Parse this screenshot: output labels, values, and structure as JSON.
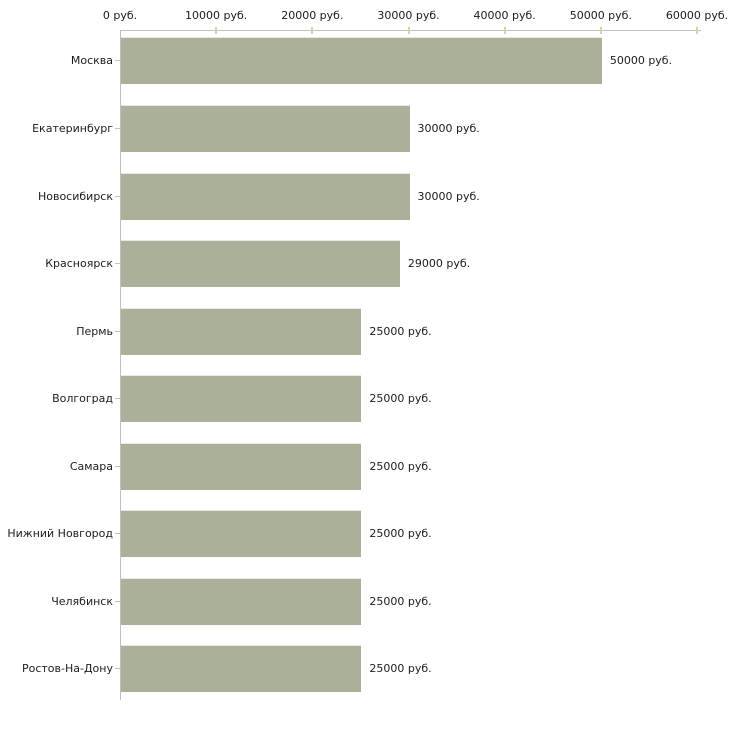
{
  "chart_data": {
    "type": "bar",
    "orientation": "horizontal",
    "categories": [
      "Москва",
      "Екатеринбург",
      "Новосибирск",
      "Красноярск",
      "Пермь",
      "Волгоград",
      "Самара",
      "Нижний Новгород",
      "Челябинск",
      "Ростов-На-Дону"
    ],
    "values": [
      50000,
      30000,
      30000,
      29000,
      25000,
      25000,
      25000,
      25000,
      25000,
      25000
    ],
    "value_labels": [
      "50000 руб.",
      "30000 руб.",
      "30000 руб.",
      "29000 руб.",
      "25000 руб.",
      "25000 руб.",
      "25000 руб.",
      "25000 руб.",
      "25000 руб.",
      "25000 руб."
    ],
    "x_axis": {
      "min": 0,
      "max": 60000,
      "tick_values": [
        0,
        10000,
        20000,
        30000,
        40000,
        50000,
        60000
      ],
      "tick_labels": [
        "0 руб.",
        "10000 руб.",
        "20000 руб.",
        "30000 руб.",
        "40000 руб.",
        "50000 руб.",
        "60000 руб."
      ],
      "unit": "руб."
    },
    "legend": "none",
    "grid": false,
    "colors": {
      "bar": "#abb199",
      "bar_top_edge": "#e8e9e2",
      "axis_line": "#c0c0c0",
      "x_tick_mark": "#d2d4ab",
      "text": "#1c1c1c",
      "background": "#ffffff"
    }
  }
}
